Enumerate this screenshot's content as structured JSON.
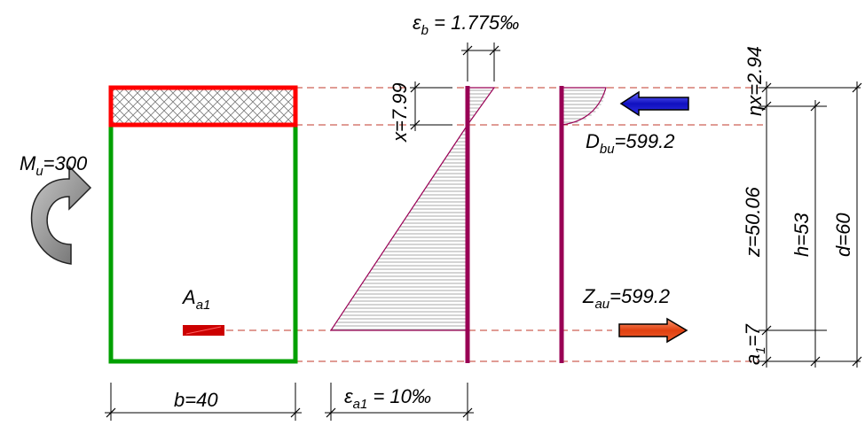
{
  "labels": {
    "moment": {
      "main": "M",
      "sub": "u",
      "value": "=300"
    },
    "steel_area": {
      "main": "A",
      "sub": "a1"
    },
    "width": "b=40",
    "strain_concrete": {
      "main": "ε",
      "sub": "b",
      "value": " = 1.775‰"
    },
    "strain_steel": {
      "main": "ε",
      "sub": "a1",
      "value": " = 10‰"
    },
    "neutral_axis": "x=7.99",
    "compression_force": {
      "main": "D",
      "sub": "bu",
      "value": "=599.2"
    },
    "tension_force": {
      "main": "Z",
      "sub": "au",
      "value": "=599.2"
    },
    "eta_x": "ηx=2.94",
    "lever_arm": "z=50.06",
    "effective_depth": "h=53",
    "total_depth": "d=60",
    "cover": {
      "main": "a",
      "sub": "1",
      "value": "=7"
    }
  },
  "colors": {
    "compression_zone": "#ff0000",
    "section_outline": "#00a000",
    "steel": "#cc0000",
    "strain_line": "#990055",
    "strain_hatch": "#8e8e8e",
    "dash": "#c0392b",
    "compression_arrow": "#2020d0",
    "tension_arrow": "#f05020",
    "moment_arrow": "#8c8c8c"
  }
}
